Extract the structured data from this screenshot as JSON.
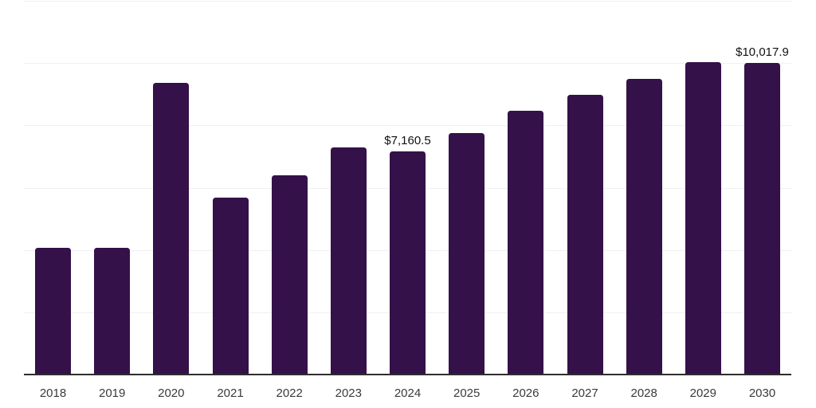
{
  "chart_data": {
    "type": "bar",
    "title": "",
    "xlabel": "",
    "ylabel": "",
    "categories": [
      "2018",
      "2019",
      "2020",
      "2021",
      "2022",
      "2023",
      "2024",
      "2025",
      "2026",
      "2027",
      "2028",
      "2029",
      "2030"
    ],
    "values": [
      4060,
      4060,
      9370,
      5670,
      6390,
      7300,
      7160.5,
      7760,
      8460,
      8970,
      9495,
      10040,
      10017.9
    ],
    "data_labels": [
      {
        "category": "2024",
        "index": 6,
        "text": "$7,160.5"
      },
      {
        "category": "2030",
        "index": 12,
        "text": "$10,017.9"
      }
    ],
    "ylim": [
      0,
      12000
    ],
    "gridline_interval": 2000,
    "grid": "horizontal-only",
    "legend": "none",
    "y_axis_tick_labels_visible": false
  },
  "colors": {
    "bar": "#341149",
    "axis_line": "#2e2e2e",
    "gridline": "#f0f0f2",
    "tick_label": "#3a3a3a",
    "data_label": "#111111",
    "background": "#ffffff"
  }
}
